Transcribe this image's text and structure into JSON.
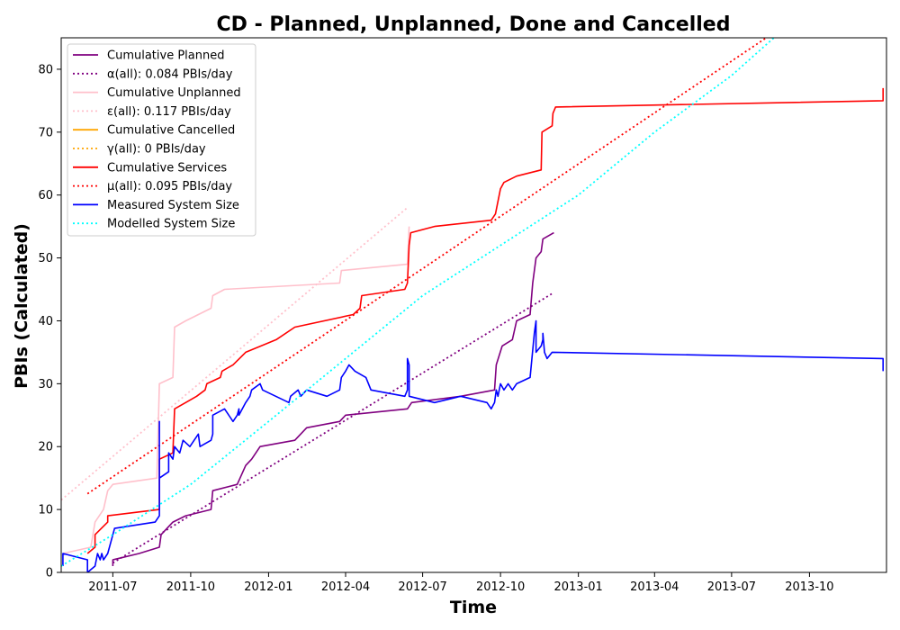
{
  "chart_data": {
    "type": "line",
    "title": "CD - Planned, Unplanned, Done  and Cancelled",
    "xlabel": "Time",
    "ylabel": "PBIs (Calculated)",
    "xlim": [
      "2011-05-01",
      "2013-12-31"
    ],
    "ylim": [
      0,
      85
    ],
    "x_ticks": [
      "2011-07",
      "2011-10",
      "2012-01",
      "2012-04",
      "2012-07",
      "2012-10",
      "2013-01",
      "2013-04",
      "2013-07",
      "2013-10"
    ],
    "y_ticks": [
      0,
      10,
      20,
      30,
      40,
      50,
      60,
      70,
      80
    ],
    "legend_position": "top-left",
    "series": [
      {
        "name": "Cumulative Planned",
        "color": "#800080",
        "style": "solid",
        "points": [
          [
            "2011-07-01",
            1
          ],
          [
            "2011-07-01",
            2
          ],
          [
            "2011-08-01",
            3
          ],
          [
            "2011-08-25",
            4
          ],
          [
            "2011-08-27",
            6
          ],
          [
            "2011-09-10",
            8
          ],
          [
            "2011-09-25",
            9
          ],
          [
            "2011-10-25",
            10
          ],
          [
            "2011-10-27",
            13
          ],
          [
            "2011-11-25",
            14
          ],
          [
            "2011-12-05",
            17
          ],
          [
            "2011-12-12",
            18
          ],
          [
            "2011-12-22",
            20
          ],
          [
            "2012-02-01",
            21
          ],
          [
            "2012-02-15",
            23
          ],
          [
            "2012-03-25",
            24
          ],
          [
            "2012-04-01",
            25
          ],
          [
            "2012-06-13",
            26
          ],
          [
            "2012-06-18",
            27
          ],
          [
            "2012-08-15",
            28
          ],
          [
            "2012-09-24",
            29
          ],
          [
            "2012-09-26",
            33
          ],
          [
            "2012-10-03",
            36
          ],
          [
            "2012-10-15",
            37
          ],
          [
            "2012-10-20",
            40
          ],
          [
            "2012-11-05",
            41
          ],
          [
            "2012-11-08",
            46
          ],
          [
            "2012-11-12",
            50
          ],
          [
            "2012-11-18",
            51
          ],
          [
            "2012-11-20",
            53
          ],
          [
            "2012-12-03",
            54
          ]
        ]
      },
      {
        "name": "α(all): 0.084 PBIs/day",
        "color": "#800080",
        "style": "dotted",
        "points": [
          [
            "2011-07-01",
            1.5
          ],
          [
            "2012-12-03",
            44.5
          ]
        ]
      },
      {
        "name": "Cumulative Unplanned",
        "color": "#ffc0cb",
        "style": "solid",
        "points": [
          [
            "2011-05-03",
            3
          ],
          [
            "2011-06-05",
            4
          ],
          [
            "2011-06-10",
            8
          ],
          [
            "2011-06-20",
            10
          ],
          [
            "2011-06-25",
            13
          ],
          [
            "2011-07-01",
            14
          ],
          [
            "2011-08-22",
            15
          ],
          [
            "2011-08-25",
            30
          ],
          [
            "2011-09-10",
            31
          ],
          [
            "2011-09-12",
            39
          ],
          [
            "2011-09-25",
            40
          ],
          [
            "2011-10-25",
            42
          ],
          [
            "2011-10-27",
            44
          ],
          [
            "2011-11-10",
            45
          ],
          [
            "2012-03-25",
            46
          ],
          [
            "2012-03-27",
            48
          ],
          [
            "2012-06-13",
            49
          ],
          [
            "2012-06-15",
            55
          ]
        ]
      },
      {
        "name": "ε(all): 0.117 PBIs/day",
        "color": "#ffc0cb",
        "style": "dotted",
        "points": [
          [
            "2011-05-01",
            11.5
          ],
          [
            "2012-06-13",
            58
          ]
        ]
      },
      {
        "name": "Cumulative Cancelled",
        "color": "#ffa500",
        "style": "solid",
        "points": []
      },
      {
        "name": "γ(all): 0 PBIs/day",
        "color": "#ffa500",
        "style": "dotted",
        "points": []
      },
      {
        "name": "Cumulative Services",
        "color": "#ff0000",
        "style": "solid",
        "points": [
          [
            "2011-06-01",
            3
          ],
          [
            "2011-06-10",
            4
          ],
          [
            "2011-06-10",
            6
          ],
          [
            "2011-06-25",
            8
          ],
          [
            "2011-06-25",
            9
          ],
          [
            "2011-08-25",
            10
          ],
          [
            "2011-08-25",
            18
          ],
          [
            "2011-09-10",
            19
          ],
          [
            "2011-09-12",
            26
          ],
          [
            "2011-09-25",
            27
          ],
          [
            "2011-10-08",
            28
          ],
          [
            "2011-10-18",
            29
          ],
          [
            "2011-10-20",
            30
          ],
          [
            "2011-11-05",
            31
          ],
          [
            "2011-11-07",
            32
          ],
          [
            "2011-11-20",
            33
          ],
          [
            "2011-12-05",
            35
          ],
          [
            "2012-01-10",
            37
          ],
          [
            "2012-02-01",
            39
          ],
          [
            "2012-04-10",
            41
          ],
          [
            "2012-04-18",
            42
          ],
          [
            "2012-04-20",
            44
          ],
          [
            "2012-06-10",
            45
          ],
          [
            "2012-06-13",
            46
          ],
          [
            "2012-06-15",
            52
          ],
          [
            "2012-06-17",
            54
          ],
          [
            "2012-07-15",
            55
          ],
          [
            "2012-09-20",
            56
          ],
          [
            "2012-09-25",
            57
          ],
          [
            "2012-10-01",
            61
          ],
          [
            "2012-10-05",
            62
          ],
          [
            "2012-10-20",
            63
          ],
          [
            "2012-11-18",
            64
          ],
          [
            "2012-11-19",
            70
          ],
          [
            "2012-12-01",
            71
          ],
          [
            "2012-12-02",
            73
          ],
          [
            "2012-12-05",
            74
          ],
          [
            "2013-12-27",
            75
          ],
          [
            "2013-12-27",
            77
          ]
        ]
      },
      {
        "name": "μ(all): 0.095 PBIs/day",
        "color": "#ff0000",
        "style": "dotted",
        "points": [
          [
            "2011-06-01",
            12.5
          ],
          [
            "2013-08-11",
            85
          ]
        ]
      },
      {
        "name": "Measured System Size",
        "color": "#0000ff",
        "style": "solid",
        "points": [
          [
            "2011-05-03",
            1
          ],
          [
            "2011-05-03",
            3
          ],
          [
            "2011-06-01",
            2
          ],
          [
            "2011-06-01",
            0
          ],
          [
            "2011-06-10",
            1
          ],
          [
            "2011-06-13",
            3
          ],
          [
            "2011-06-16",
            2
          ],
          [
            "2011-06-18",
            3
          ],
          [
            "2011-06-20",
            2
          ],
          [
            "2011-06-25",
            3
          ],
          [
            "2011-07-01",
            6
          ],
          [
            "2011-07-03",
            7
          ],
          [
            "2011-08-20",
            8
          ],
          [
            "2011-08-25",
            9
          ],
          [
            "2011-08-25",
            24
          ],
          [
            "2011-08-25",
            15
          ],
          [
            "2011-09-05",
            16
          ],
          [
            "2011-09-05",
            19
          ],
          [
            "2011-09-10",
            18
          ],
          [
            "2011-09-12",
            20
          ],
          [
            "2011-09-18",
            19
          ],
          [
            "2011-09-22",
            21
          ],
          [
            "2011-09-30",
            20
          ],
          [
            "2011-10-05",
            21
          ],
          [
            "2011-10-10",
            22
          ],
          [
            "2011-10-12",
            20
          ],
          [
            "2011-10-25",
            21
          ],
          [
            "2011-10-27",
            22
          ],
          [
            "2011-10-27",
            25
          ],
          [
            "2011-11-10",
            26
          ],
          [
            "2011-11-20",
            24
          ],
          [
            "2011-11-25",
            25
          ],
          [
            "2011-11-27",
            26
          ],
          [
            "2011-11-27",
            25
          ],
          [
            "2011-12-05",
            27
          ],
          [
            "2011-12-10",
            28
          ],
          [
            "2011-12-12",
            29
          ],
          [
            "2011-12-22",
            30
          ],
          [
            "2011-12-25",
            29
          ],
          [
            "2012-01-25",
            27
          ],
          [
            "2012-01-27",
            28
          ],
          [
            "2012-02-05",
            29
          ],
          [
            "2012-02-08",
            28
          ],
          [
            "2012-02-15",
            29
          ],
          [
            "2012-03-10",
            28
          ],
          [
            "2012-03-25",
            29
          ],
          [
            "2012-03-27",
            31
          ],
          [
            "2012-04-01",
            32
          ],
          [
            "2012-04-05",
            33
          ],
          [
            "2012-04-12",
            32
          ],
          [
            "2012-04-25",
            31
          ],
          [
            "2012-05-01",
            29
          ],
          [
            "2012-06-10",
            28
          ],
          [
            "2012-06-13",
            29
          ],
          [
            "2012-06-13",
            34
          ],
          [
            "2012-06-15",
            33
          ],
          [
            "2012-06-15",
            28
          ],
          [
            "2012-07-15",
            27
          ],
          [
            "2012-08-15",
            28
          ],
          [
            "2012-09-15",
            27
          ],
          [
            "2012-09-20",
            26
          ],
          [
            "2012-09-24",
            27
          ],
          [
            "2012-09-26",
            29
          ],
          [
            "2012-09-28",
            28
          ],
          [
            "2012-10-01",
            30
          ],
          [
            "2012-10-05",
            29
          ],
          [
            "2012-10-10",
            30
          ],
          [
            "2012-10-15",
            29
          ],
          [
            "2012-10-20",
            30
          ],
          [
            "2012-11-05",
            31
          ],
          [
            "2012-11-10",
            38
          ],
          [
            "2012-11-12",
            40
          ],
          [
            "2012-11-12",
            35
          ],
          [
            "2012-11-18",
            36
          ],
          [
            "2012-11-20",
            37
          ],
          [
            "2012-11-20",
            38
          ],
          [
            "2012-11-22",
            35
          ],
          [
            "2012-11-25",
            34
          ],
          [
            "2012-12-01",
            35
          ],
          [
            "2013-12-27",
            34
          ],
          [
            "2013-12-27",
            32
          ]
        ]
      },
      {
        "name": "Modelled System Size",
        "color": "#00ffff",
        "style": "dotted",
        "points": [
          [
            "2011-05-01",
            1
          ],
          [
            "2011-07-01",
            6
          ],
          [
            "2011-10-01",
            14
          ],
          [
            "2012-01-01",
            24
          ],
          [
            "2012-04-01",
            34
          ],
          [
            "2012-07-01",
            44
          ],
          [
            "2012-10-01",
            52
          ],
          [
            "2013-01-01",
            60
          ],
          [
            "2013-04-01",
            70
          ],
          [
            "2013-07-01",
            79
          ],
          [
            "2013-08-20",
            85
          ]
        ]
      }
    ]
  }
}
